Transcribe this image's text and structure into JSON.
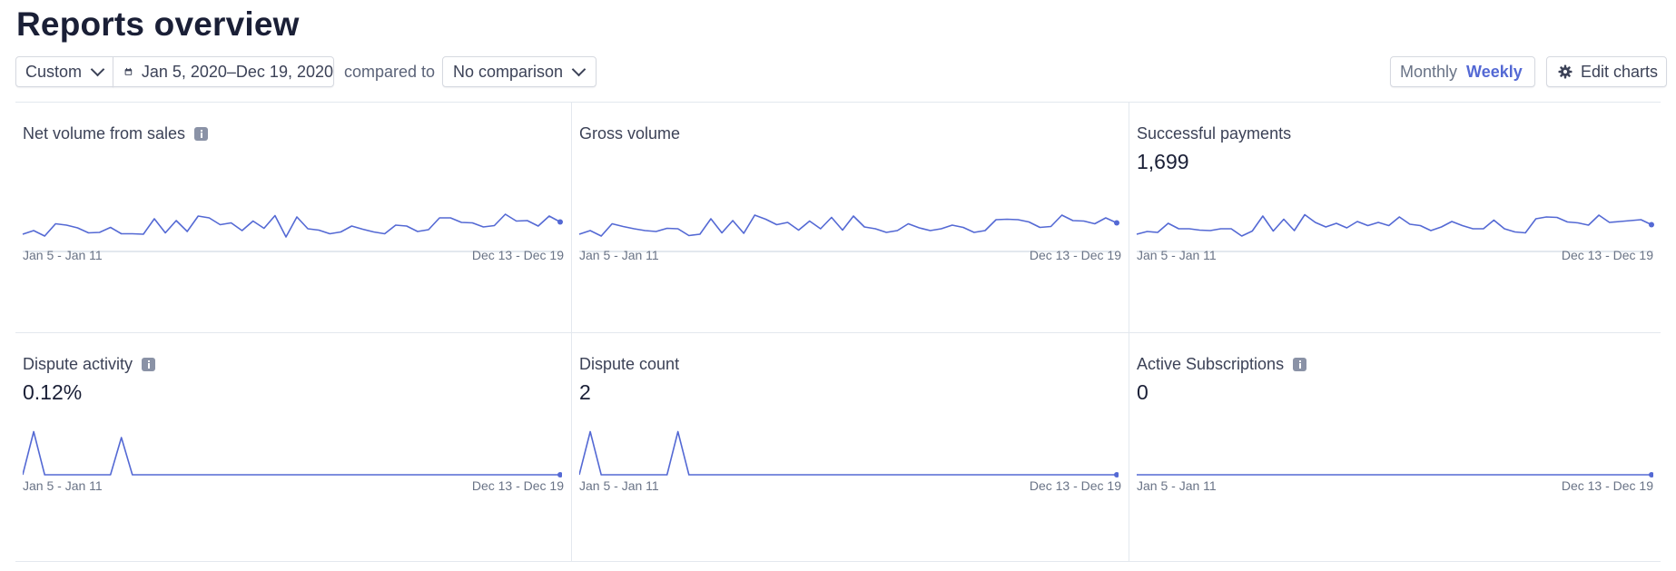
{
  "page": {
    "title": "Reports overview"
  },
  "toolbar": {
    "range_label": "Custom",
    "date_range": "Jan 5, 2020–Dec 19, 2020",
    "compared_to": "compared to",
    "comparison": "No comparison",
    "interval_monthly": "Monthly",
    "interval_weekly": "Weekly",
    "interval_selected": "Weekly",
    "edit_charts": "Edit charts"
  },
  "colors": {
    "accent": "#5469d4",
    "axis": "#e3e8ee",
    "text": "#3c4257",
    "muted": "#697386"
  },
  "icons": {
    "calendar": "calendar-icon",
    "gear": "gear-icon",
    "chevron": "chevron-down-icon",
    "info": "info-icon"
  },
  "cards": [
    {
      "title": "Net volume from sales",
      "has_info": true,
      "metric": "",
      "start_label": "Jan 5 - Jan 11",
      "end_label": "Dec 13 - Dec 19"
    },
    {
      "title": "Gross volume",
      "has_info": false,
      "metric": "",
      "start_label": "Jan 5 - Jan 11",
      "end_label": "Dec 13 - Dec 19"
    },
    {
      "title": "Successful payments",
      "has_info": false,
      "metric": "1,699",
      "start_label": "Jan 5 - Jan 11",
      "end_label": "Dec 13 - Dec 19"
    },
    {
      "title": "Dispute activity",
      "has_info": true,
      "metric": "0.12%",
      "start_label": "Jan 5 - Jan 11",
      "end_label": "Dec 13 - Dec 19"
    },
    {
      "title": "Dispute count",
      "has_info": false,
      "metric": "2",
      "start_label": "Jan 5 - Jan 11",
      "end_label": "Dec 13 - Dec 19"
    },
    {
      "title": "Active Subscriptions",
      "has_info": true,
      "metric": "0",
      "start_label": "Jan 5 - Jan 11",
      "end_label": "Dec 13 - Dec 19"
    }
  ],
  "chart_data": [
    {
      "type": "line",
      "title": "Net volume from sales",
      "x_start": "Jan 5 - Jan 11",
      "x_end": "Dec 13 - Dec 19",
      "values": [
        0.22,
        0.3,
        0.18,
        0.45,
        0.42,
        0.36,
        0.25,
        0.26,
        0.37,
        0.23,
        0.23,
        0.22,
        0.56,
        0.25,
        0.52,
        0.28,
        0.62,
        0.58,
        0.43,
        0.47,
        0.3,
        0.51,
        0.35,
        0.63,
        0.16,
        0.6,
        0.34,
        0.31,
        0.23,
        0.27,
        0.4,
        0.33,
        0.27,
        0.23,
        0.42,
        0.4,
        0.28,
        0.32,
        0.58,
        0.58,
        0.48,
        0.47,
        0.38,
        0.41,
        0.66,
        0.51,
        0.52,
        0.4,
        0.62,
        0.49
      ]
    },
    {
      "type": "line",
      "title": "Gross volume",
      "x_start": "Jan 5 - Jan 11",
      "x_end": "Dec 13 - Dec 19",
      "values": [
        0.22,
        0.3,
        0.18,
        0.45,
        0.39,
        0.34,
        0.3,
        0.28,
        0.35,
        0.34,
        0.19,
        0.22,
        0.56,
        0.25,
        0.52,
        0.24,
        0.64,
        0.55,
        0.43,
        0.48,
        0.31,
        0.51,
        0.34,
        0.59,
        0.31,
        0.62,
        0.38,
        0.34,
        0.26,
        0.3,
        0.45,
        0.36,
        0.3,
        0.34,
        0.42,
        0.37,
        0.26,
        0.3,
        0.54,
        0.55,
        0.54,
        0.49,
        0.37,
        0.39,
        0.64,
        0.52,
        0.51,
        0.45,
        0.58,
        0.47
      ]
    },
    {
      "type": "line",
      "title": "Successful payments",
      "x_start": "Jan 5 - Jan 11",
      "x_end": "Dec 13 - Dec 19",
      "values": [
        0.22,
        0.28,
        0.26,
        0.46,
        0.34,
        0.34,
        0.31,
        0.3,
        0.34,
        0.34,
        0.18,
        0.29,
        0.62,
        0.29,
        0.55,
        0.3,
        0.65,
        0.48,
        0.38,
        0.46,
        0.36,
        0.5,
        0.41,
        0.48,
        0.41,
        0.6,
        0.44,
        0.41,
        0.3,
        0.38,
        0.5,
        0.41,
        0.34,
        0.34,
        0.53,
        0.34,
        0.27,
        0.25,
        0.56,
        0.6,
        0.59,
        0.49,
        0.47,
        0.42,
        0.64,
        0.48,
        0.5,
        0.52,
        0.54,
        0.43
      ]
    },
    {
      "type": "line",
      "title": "Dispute activity",
      "x_start": "Jan 5 - Jan 11",
      "x_end": "Dec 13 - Dec 19",
      "values": [
        0,
        0.95,
        0,
        0,
        0,
        0,
        0,
        0,
        0,
        0.82,
        0,
        0,
        0,
        0,
        0,
        0,
        0,
        0,
        0,
        0,
        0,
        0,
        0,
        0,
        0,
        0,
        0,
        0,
        0,
        0,
        0,
        0,
        0,
        0,
        0,
        0,
        0,
        0,
        0,
        0,
        0,
        0,
        0,
        0,
        0,
        0,
        0,
        0,
        0,
        0
      ]
    },
    {
      "type": "line",
      "title": "Dispute count",
      "x_start": "Jan 5 - Jan 11",
      "x_end": "Dec 13 - Dec 19",
      "values": [
        0,
        0.95,
        0,
        0,
        0,
        0,
        0,
        0,
        0,
        0.95,
        0,
        0,
        0,
        0,
        0,
        0,
        0,
        0,
        0,
        0,
        0,
        0,
        0,
        0,
        0,
        0,
        0,
        0,
        0,
        0,
        0,
        0,
        0,
        0,
        0,
        0,
        0,
        0,
        0,
        0,
        0,
        0,
        0,
        0,
        0,
        0,
        0,
        0,
        0,
        0
      ]
    },
    {
      "type": "line",
      "title": "Active Subscriptions",
      "x_start": "Jan 5 - Jan 11",
      "x_end": "Dec 13 - Dec 19",
      "values": [
        0,
        0,
        0,
        0,
        0,
        0,
        0,
        0,
        0,
        0,
        0,
        0,
        0,
        0,
        0,
        0,
        0,
        0,
        0,
        0,
        0,
        0,
        0,
        0,
        0,
        0,
        0,
        0,
        0,
        0,
        0,
        0,
        0,
        0,
        0,
        0,
        0,
        0,
        0,
        0,
        0,
        0,
        0,
        0,
        0,
        0,
        0,
        0,
        0,
        0
      ]
    }
  ]
}
